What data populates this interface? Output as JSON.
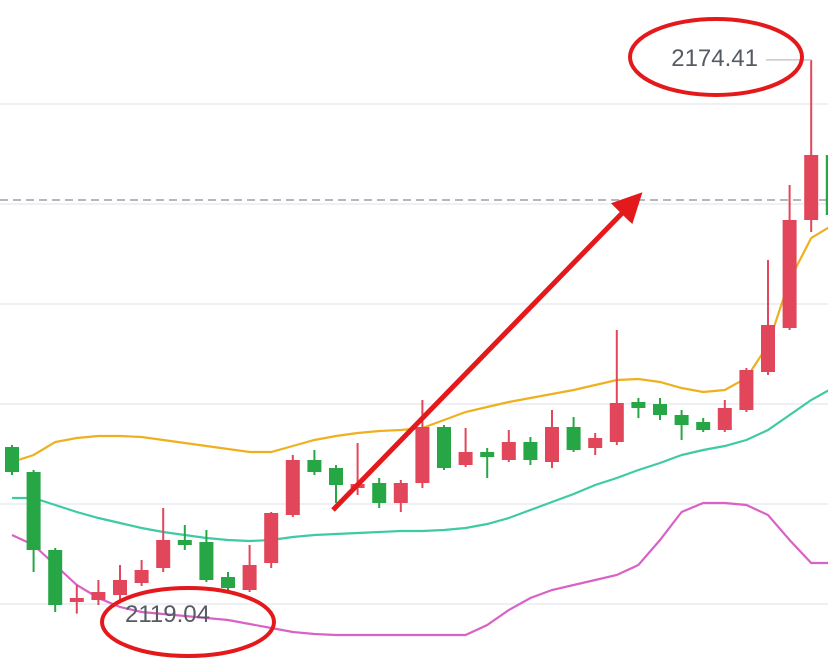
{
  "chart_data": {
    "type": "candlestick",
    "open": [
      2135.7,
      2133.2,
      2125.4,
      2120.2,
      2120.4,
      2120.9,
      2122.1,
      2123.6,
      2126.4,
      2126.2,
      2122.7,
      2121.4,
      2124.1,
      2128.9,
      2134.4,
      2133.6,
      2131.6,
      2132.1,
      2130.1,
      2132.1,
      2137.7,
      2133.9,
      2135.2,
      2134.4,
      2136.2,
      2134.2,
      2137.7,
      2135.6,
      2136.2,
      2140.2,
      2140.0,
      2138.9,
      2138.2,
      2137.4,
      2139.4,
      2143.2,
      2147.6,
      2158.4,
      2164.9
    ],
    "high": [
      2135.9,
      2133.4,
      2125.6,
      2121.9,
      2122.4,
      2123.9,
      2124.4,
      2129.6,
      2127.9,
      2127.4,
      2123.2,
      2125.9,
      2129.2,
      2134.9,
      2135.4,
      2133.9,
      2136.1,
      2132.6,
      2132.4,
      2140.4,
      2137.9,
      2137.6,
      2135.6,
      2137.4,
      2136.7,
      2139.4,
      2138.7,
      2137.1,
      2147.4,
      2140.6,
      2140.6,
      2139.4,
      2138.6,
      2140.4,
      2143.6,
      2154.4,
      2161.9,
      2174.41,
      2165.1
    ],
    "low": [
      2132.9,
      2123.2,
      2119.2,
      2119.04,
      2119.9,
      2120.4,
      2121.8,
      2123.2,
      2125.4,
      2122.2,
      2121.4,
      2121.2,
      2123.6,
      2128.7,
      2132.9,
      2130.1,
      2130.9,
      2129.6,
      2129.2,
      2131.6,
      2133.4,
      2133.7,
      2132.6,
      2134.2,
      2133.9,
      2133.6,
      2135.2,
      2134.9,
      2135.9,
      2138.6,
      2138.4,
      2136.4,
      2137.2,
      2137.2,
      2139.2,
      2142.9,
      2147.4,
      2157.2,
      2158.6
    ],
    "close": [
      2133.2,
      2125.4,
      2119.9,
      2120.6,
      2121.2,
      2122.4,
      2123.4,
      2126.4,
      2125.9,
      2122.4,
      2121.6,
      2123.9,
      2129.1,
      2134.4,
      2133.2,
      2131.9,
      2132.0,
      2130.1,
      2132.1,
      2137.7,
      2133.6,
      2135.2,
      2134.7,
      2136.2,
      2134.4,
      2137.7,
      2135.4,
      2136.6,
      2140.1,
      2139.6,
      2138.9,
      2137.9,
      2137.4,
      2139.6,
      2143.4,
      2147.9,
      2158.4,
      2164.9,
      2158.9
    ],
    "up_color": "#e2465a",
    "down_color": "#27a645",
    "series": [
      {
        "color": "#efb020",
        "values": [
          2134.2,
          2134.9,
          2136.2,
          2136.6,
          2136.8,
          2136.8,
          2136.7,
          2136.4,
          2136.1,
          2135.8,
          2135.5,
          2135.2,
          2135.2,
          2135.8,
          2136.4,
          2136.8,
          2137.1,
          2137.3,
          2137.4,
          2137.6,
          2138.4,
          2139.2,
          2139.7,
          2140.2,
          2140.6,
          2141.0,
          2141.4,
          2141.9,
          2142.4,
          2142.5,
          2142.2,
          2141.6,
          2141.2,
          2141.4,
          2142.6,
          2145.9,
          2152.4,
          2156.6,
          2157.9
        ]
      },
      {
        "color": "#3ecaa2",
        "values": [
          2130.6,
          2130.6,
          2129.9,
          2129.2,
          2128.6,
          2128.1,
          2127.6,
          2127.2,
          2126.9,
          2126.6,
          2126.4,
          2126.3,
          2126.4,
          2126.7,
          2126.9,
          2127.0,
          2127.1,
          2127.2,
          2127.3,
          2127.3,
          2127.4,
          2127.6,
          2128.0,
          2128.6,
          2129.4,
          2130.2,
          2131.0,
          2131.9,
          2132.6,
          2133.4,
          2134.1,
          2134.9,
          2135.4,
          2135.8,
          2136.4,
          2137.4,
          2138.9,
          2140.4,
          2141.6
        ]
      },
      {
        "color": "#d862c6",
        "values": [
          2126.9,
          2125.9,
          2123.9,
          2121.9,
          2120.6,
          2119.7,
          2119.2,
          2119.0,
          2118.8,
          2118.6,
          2118.4,
          2118.0,
          2117.6,
          2117.2,
          2117.0,
          2116.9,
          2116.9,
          2116.9,
          2116.9,
          2116.9,
          2116.9,
          2116.9,
          2117.9,
          2119.4,
          2120.6,
          2121.4,
          2121.9,
          2122.4,
          2122.9,
          2123.9,
          2126.4,
          2129.2,
          2130.1,
          2130.1,
          2129.9,
          2128.9,
          2126.4,
          2124.1,
          2124.1
        ]
      }
    ],
    "ylim": [
      2114.0,
      2180.4
    ],
    "grid_values": [
      2170,
      2160,
      2150,
      2140,
      2130,
      2120
    ],
    "price_line": 2160.4
  }
}
